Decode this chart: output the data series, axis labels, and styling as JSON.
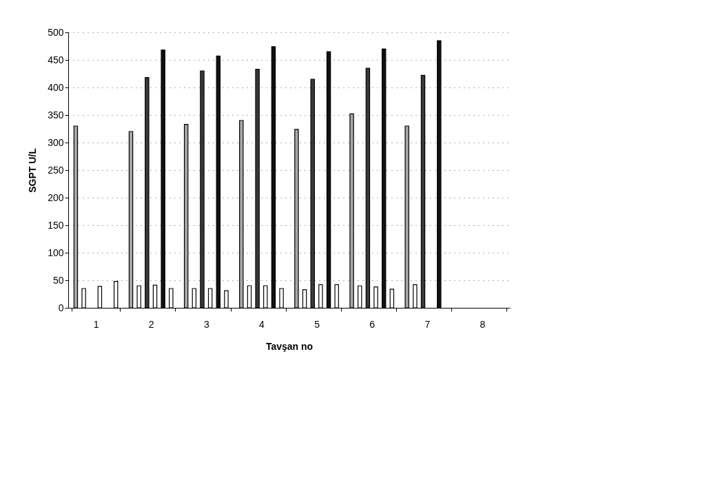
{
  "chart_data": {
    "type": "bar",
    "xlabel": "Tavşan no",
    "ylabel": "SGPT U/L",
    "categories": [
      "1",
      "2",
      "3",
      "4",
      "5",
      "6",
      "7",
      "8"
    ],
    "series": [
      {
        "color": "#a8a8a8",
        "values": [
          330,
          320,
          333,
          340,
          324,
          352,
          330,
          null
        ]
      },
      {
        "color": "#ffffff",
        "values": [
          35,
          40,
          35,
          40,
          33,
          40,
          42,
          null
        ]
      },
      {
        "color": "#3a3a3a",
        "values": [
          null,
          418,
          430,
          433,
          415,
          435,
          422,
          null
        ]
      },
      {
        "color": "#ffffff",
        "values": [
          39,
          41,
          35,
          40,
          42,
          38,
          null,
          null
        ]
      },
      {
        "color": "#111111",
        "values": [
          null,
          468,
          457,
          474,
          465,
          470,
          485,
          null
        ]
      },
      {
        "color": "#ffffff",
        "values": [
          48,
          35,
          31,
          35,
          42,
          34,
          null,
          null
        ]
      }
    ],
    "ylim": [
      0,
      500
    ],
    "yticks": [
      0,
      50,
      100,
      150,
      200,
      250,
      300,
      350,
      400,
      450,
      500
    ],
    "grid": "y",
    "legend": false
  }
}
